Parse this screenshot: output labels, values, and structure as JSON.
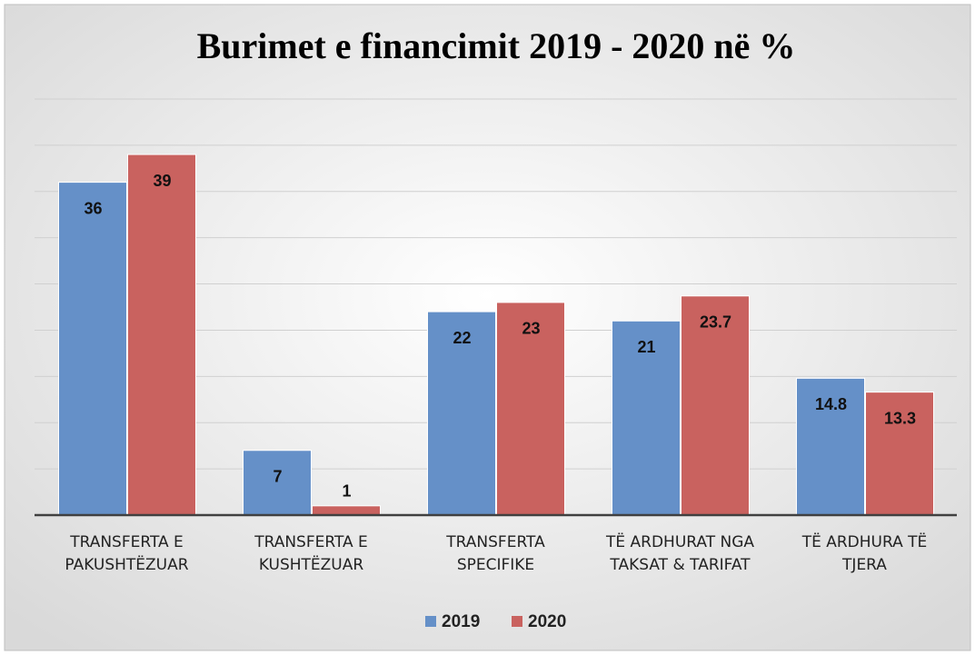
{
  "chart_data": {
    "type": "bar",
    "title": "Burimet e financimit 2019 - 2020 në %",
    "categories": [
      "TRANSFERTA E PAKUSHTËZUAR",
      "TRANSFERTA E KUSHTËZUAR",
      "TRANSFERTA SPECIFIKE",
      "TË ARDHURAT NGA TAKSAT & TARIFAT",
      "TË ARDHURA TË TJERA"
    ],
    "series": [
      {
        "name": "2019",
        "color": "#6590c8",
        "values": [
          36,
          7,
          22,
          21,
          14.8
        ]
      },
      {
        "name": "2020",
        "color": "#c9625f",
        "values": [
          39,
          1,
          23,
          23.7,
          13.3
        ]
      }
    ],
    "ylim": [
      0,
      45
    ],
    "yticks": [
      0,
      5,
      10,
      15,
      20,
      25,
      30,
      35,
      40,
      45
    ],
    "grid": true,
    "legend": "bottom"
  }
}
